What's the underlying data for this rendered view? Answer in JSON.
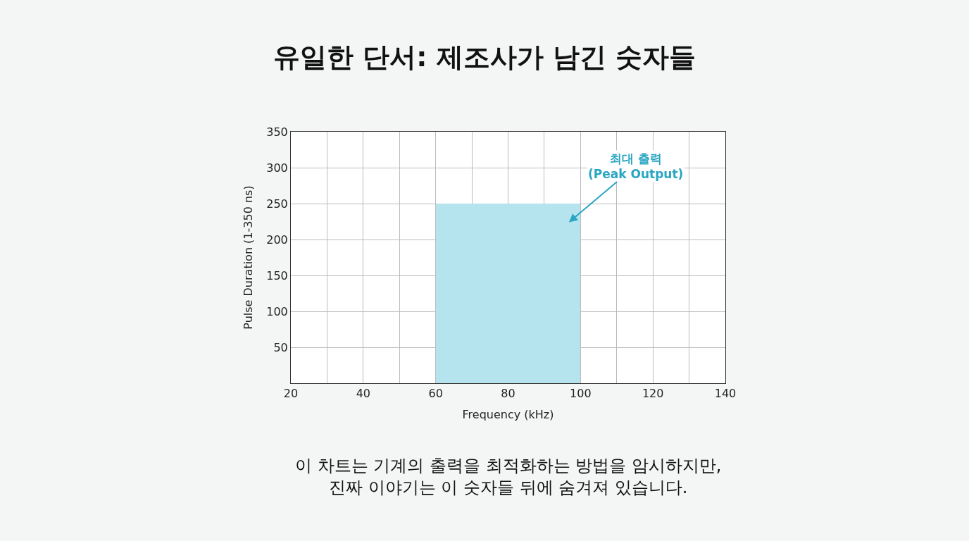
{
  "chart_data": {
    "type": "histogram",
    "title": "유일한 단서: 제조사가 남긴 숫자들",
    "xlabel": "Frequency (kHz)",
    "ylabel": "Pulse Duration (1-350 ns)",
    "bins": [
      60,
      100
    ],
    "values": [
      250
    ],
    "color": "#b5e3ee",
    "xlim": [
      20,
      140
    ],
    "xticks": [
      20,
      {
        "value": 30,
        "label": null
      },
      40,
      {
        "value": 50,
        "label": null
      },
      60,
      {
        "value": 70,
        "label": null
      },
      80,
      {
        "value": 90,
        "label": null
      },
      100,
      {
        "value": 110,
        "label": null
      },
      120,
      {
        "value": 130,
        "label": null
      },
      140
    ],
    "ylim": [
      0,
      350
    ],
    "yticks": [
      50,
      100,
      150,
      200,
      250,
      300,
      350
    ],
    "grid": true,
    "annotations": [
      "최대 출력\n(Peak Output)",
      "이 차트는 기계의 출력을 최적화하는 방법을 암시하지만,\n진짜 이야기는 이 숫자들 뒤에 숨겨져 있습니다."
    ]
  }
}
